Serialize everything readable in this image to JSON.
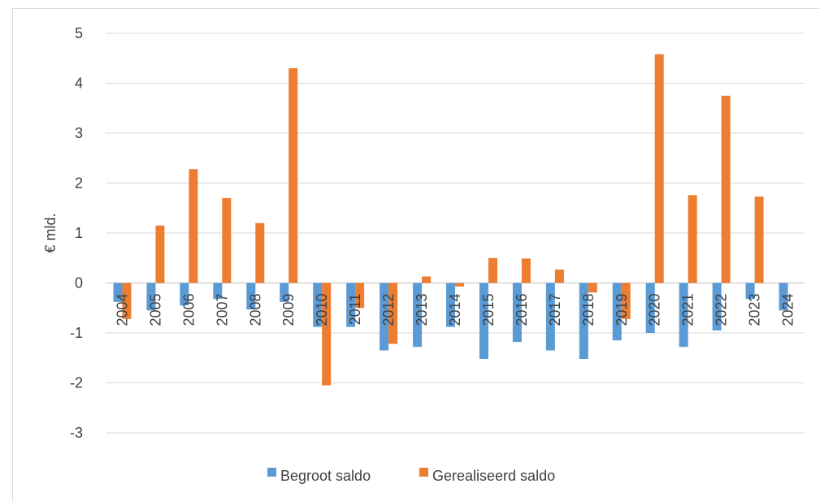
{
  "chart_data": {
    "type": "bar",
    "title": "",
    "xlabel": "",
    "ylabel": "€ mld.",
    "ylim": [
      -3,
      5
    ],
    "yticks": [
      5,
      4,
      3,
      2,
      1,
      0,
      -1,
      -2,
      -3
    ],
    "grid": true,
    "legend_position": "bottom",
    "categories": [
      "2004",
      "2005",
      "2006",
      "2007",
      "2008",
      "2009",
      "2010",
      "2011",
      "2012",
      "2013",
      "2014",
      "2015",
      "2016",
      "2017",
      "2018",
      "2019",
      "2020",
      "2021",
      "2022",
      "2023",
      "2024"
    ],
    "series": [
      {
        "name": "Begroot saldo",
        "color": "#5B9BD5",
        "values": [
          -0.38,
          -0.55,
          -0.45,
          -0.32,
          -0.53,
          -0.38,
          -0.88,
          -0.88,
          -1.35,
          -1.28,
          -0.88,
          -1.52,
          -1.18,
          -1.35,
          -1.52,
          -1.15,
          -1.0,
          -1.28,
          -0.95,
          -0.32,
          -0.55
        ]
      },
      {
        "name": "Gerealiseerd saldo",
        "color": "#ED7D31",
        "values": [
          -0.72,
          1.15,
          2.28,
          1.7,
          1.2,
          4.3,
          -2.05,
          -0.5,
          -1.22,
          0.13,
          -0.07,
          0.5,
          0.49,
          0.27,
          -0.19,
          -0.72,
          4.58,
          1.76,
          3.75,
          1.73,
          0
        ]
      }
    ]
  }
}
